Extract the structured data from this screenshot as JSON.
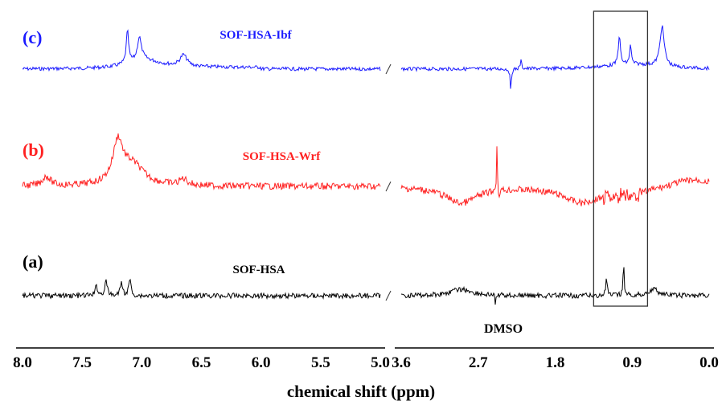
{
  "chart_data": {
    "type": "line",
    "xlabel": "chemical shift (ppm)",
    "x_reversed": true,
    "broken_axis": true,
    "panels": [
      {
        "xlim": [
          8.0,
          5.0
        ],
        "ticks": [
          "8.0",
          "7.5",
          "7.0",
          "6.5",
          "6.0",
          "5.5",
          "5.0"
        ]
      },
      {
        "xlim": [
          3.6,
          0.0
        ],
        "ticks": [
          "3.6",
          "2.7",
          "1.8",
          "0.9",
          "0.0"
        ]
      }
    ],
    "series": [
      {
        "letter": "(c)",
        "name": "SOF-HSA-Ibf",
        "color": "#1a1aff",
        "peaks_ppm": [
          7.12,
          7.02,
          6.65,
          2.3,
          1.03,
          0.92,
          0.55
        ]
      },
      {
        "letter": "(b)",
        "name": "SOF-HSA-Wrf",
        "color": "#ff2020",
        "peaks_ppm": [
          7.8,
          7.2,
          6.65,
          2.48,
          0.95
        ]
      },
      {
        "letter": "(a)",
        "name": "SOF-HSA",
        "color": "#000000",
        "peaks_ppm": [
          7.38,
          7.3,
          7.17,
          7.1,
          1.2,
          1.0
        ]
      }
    ],
    "annotations": [
      {
        "text": "DMSO",
        "ppm": 2.5
      }
    ],
    "highlight_box_ppm": [
      1.35,
      0.72
    ],
    "grid": false
  }
}
